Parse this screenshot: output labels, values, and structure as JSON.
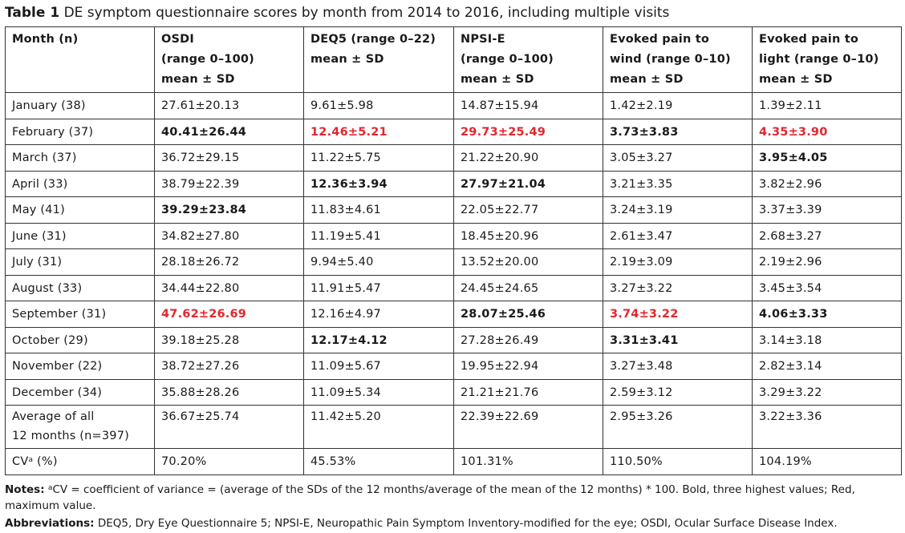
{
  "caption": {
    "label": "Table 1",
    "text": "DE symptom questionnaire scores by month from 2014 to 2016, including multiple visits"
  },
  "table": {
    "headers": [
      [
        "Month (n)"
      ],
      [
        "OSDI",
        "(range 0–100)",
        "mean ± SD"
      ],
      [
        "DEQ5 (range 0–22)",
        "mean ± SD"
      ],
      [
        "NPSI-E",
        "(range 0–100)",
        "mean ± SD"
      ],
      [
        "Evoked pain to",
        "wind (range 0–10)",
        "mean ± SD"
      ],
      [
        "Evoked pain to",
        "light (range 0–10)",
        "mean ± SD"
      ]
    ],
    "rows": [
      {
        "month": "January (38)",
        "cells": [
          {
            "v": "27.61±20.13",
            "s": ""
          },
          {
            "v": "9.61±5.98",
            "s": ""
          },
          {
            "v": "14.87±15.94",
            "s": ""
          },
          {
            "v": "1.42±2.19",
            "s": ""
          },
          {
            "v": "1.39±2.11",
            "s": ""
          }
        ]
      },
      {
        "month": "February (37)",
        "cells": [
          {
            "v": "40.41±26.44",
            "s": "b"
          },
          {
            "v": "12.46±5.21",
            "s": "r"
          },
          {
            "v": "29.73±25.49",
            "s": "r"
          },
          {
            "v": "3.73±3.83",
            "s": "b"
          },
          {
            "v": "4.35±3.90",
            "s": "r"
          }
        ]
      },
      {
        "month": "March (37)",
        "cells": [
          {
            "v": "36.72±29.15",
            "s": ""
          },
          {
            "v": "11.22±5.75",
            "s": ""
          },
          {
            "v": "21.22±20.90",
            "s": ""
          },
          {
            "v": "3.05±3.27",
            "s": ""
          },
          {
            "v": "3.95±4.05",
            "s": "b"
          }
        ]
      },
      {
        "month": "April (33)",
        "cells": [
          {
            "v": "38.79±22.39",
            "s": ""
          },
          {
            "v": "12.36±3.94",
            "s": "b"
          },
          {
            "v": "27.97±21.04",
            "s": "b"
          },
          {
            "v": "3.21±3.35",
            "s": ""
          },
          {
            "v": "3.82±2.96",
            "s": ""
          }
        ]
      },
      {
        "month": "May (41)",
        "cells": [
          {
            "v": "39.29±23.84",
            "s": "b"
          },
          {
            "v": "11.83±4.61",
            "s": ""
          },
          {
            "v": "22.05±22.77",
            "s": ""
          },
          {
            "v": "3.24±3.19",
            "s": ""
          },
          {
            "v": "3.37±3.39",
            "s": ""
          }
        ]
      },
      {
        "month": "June (31)",
        "cells": [
          {
            "v": "34.82±27.80",
            "s": ""
          },
          {
            "v": "11.19±5.41",
            "s": ""
          },
          {
            "v": "18.45±20.96",
            "s": ""
          },
          {
            "v": "2.61±3.47",
            "s": ""
          },
          {
            "v": "2.68±3.27",
            "s": ""
          }
        ]
      },
      {
        "month": "July (31)",
        "cells": [
          {
            "v": "28.18±26.72",
            "s": ""
          },
          {
            "v": "9.94±5.40",
            "s": ""
          },
          {
            "v": "13.52±20.00",
            "s": ""
          },
          {
            "v": "2.19±3.09",
            "s": ""
          },
          {
            "v": "2.19±2.96",
            "s": ""
          }
        ]
      },
      {
        "month": "August (33)",
        "cells": [
          {
            "v": "34.44±22.80",
            "s": ""
          },
          {
            "v": "11.91±5.47",
            "s": ""
          },
          {
            "v": "24.45±24.65",
            "s": ""
          },
          {
            "v": "3.27±3.22",
            "s": ""
          },
          {
            "v": "3.45±3.54",
            "s": ""
          }
        ]
      },
      {
        "month": "September (31)",
        "cells": [
          {
            "v": "47.62±26.69",
            "s": "r"
          },
          {
            "v": "12.16±4.97",
            "s": ""
          },
          {
            "v": "28.07±25.46",
            "s": "b"
          },
          {
            "v": "3.74±3.22",
            "s": "r"
          },
          {
            "v": "4.06±3.33",
            "s": "b"
          }
        ]
      },
      {
        "month": "October (29)",
        "cells": [
          {
            "v": "39.18±25.28",
            "s": ""
          },
          {
            "v": "12.17±4.12",
            "s": "b"
          },
          {
            "v": "27.28±26.49",
            "s": ""
          },
          {
            "v": "3.31±3.41",
            "s": "b"
          },
          {
            "v": "3.14±3.18",
            "s": ""
          }
        ]
      },
      {
        "month": "November (22)",
        "cells": [
          {
            "v": "38.72±27.26",
            "s": ""
          },
          {
            "v": "11.09±5.67",
            "s": ""
          },
          {
            "v": "19.95±22.94",
            "s": ""
          },
          {
            "v": "3.27±3.48",
            "s": ""
          },
          {
            "v": "2.82±3.14",
            "s": ""
          }
        ]
      },
      {
        "month": "December (34)",
        "cells": [
          {
            "v": "35.88±28.26",
            "s": ""
          },
          {
            "v": "11.09±5.34",
            "s": ""
          },
          {
            "v": "21.21±21.76",
            "s": ""
          },
          {
            "v": "2.59±3.12",
            "s": ""
          },
          {
            "v": "3.29±3.22",
            "s": ""
          }
        ]
      }
    ],
    "average_row": {
      "label_line1": "Average of all",
      "label_line2": "12 months (n=397)",
      "cells": [
        "36.67±25.74",
        "11.42±5.20",
        "22.39±22.69",
        "2.95±3.26",
        "3.22±3.36"
      ]
    },
    "cv_row": {
      "label": "CV",
      "label_sup": "a",
      "label_suffix": " (%)",
      "cells": [
        "70.20%",
        "45.53%",
        "101.31%",
        "110.50%",
        "104.19%"
      ]
    }
  },
  "notes": {
    "label": "Notes:",
    "sup": "a",
    "text": "CV = coefficient of variance = (average of the SDs of the 12 months/average of the mean of the 12 months) * 100. Bold, three highest values; Red, maximum value."
  },
  "abbreviations": {
    "label": "Abbreviations:",
    "text": "DEQ5, Dry Eye Questionnaire 5; NPSI-E, Neuropathic Pain Symptom Inventory-modified for the eye; OSDI, Ocular Surface Disease Index."
  },
  "colors": {
    "max_value": "#e3262e",
    "text": "#1a1a1a"
  }
}
